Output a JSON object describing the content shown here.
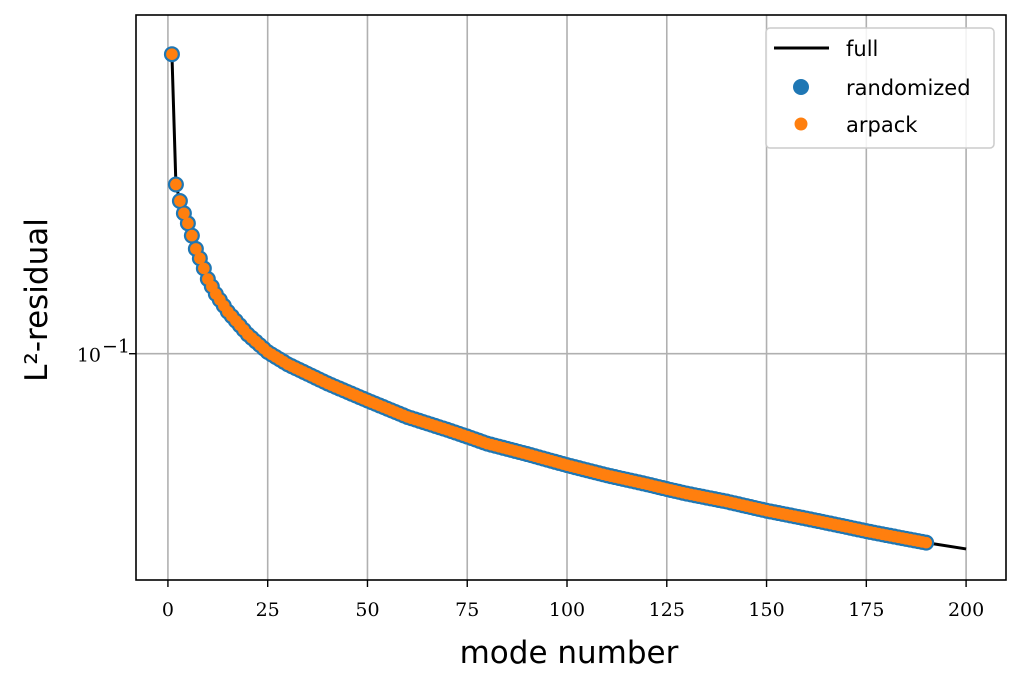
{
  "chart_data": {
    "type": "line",
    "xlabel": "mode number",
    "ylabel": "L²-residual",
    "y_scale": "log",
    "xlim": [
      -8,
      210
    ],
    "ylim": [
      0.0265,
      0.73
    ],
    "grid": true,
    "legend_position": "top-right",
    "x_ticks": [
      0,
      25,
      50,
      75,
      100,
      125,
      150,
      175,
      200
    ],
    "x_tick_labels": [
      "0",
      "25",
      "50",
      "75",
      "100",
      "125",
      "150",
      "175",
      "200"
    ],
    "y_ticks": [
      0.1
    ],
    "y_tick_labels": [
      "10",
      "−1"
    ],
    "legend": [
      "full",
      "randomized",
      "arpack"
    ],
    "colors": {
      "full": "#000000",
      "randomized": "#1f77b4",
      "arpack": "#ff7f0e"
    },
    "series": [
      {
        "name": "full",
        "style": "line",
        "points": [
          [
            1,
            0.58
          ],
          [
            2,
            0.27
          ],
          [
            3,
            0.245
          ],
          [
            4,
            0.228
          ],
          [
            5,
            0.215
          ],
          [
            6,
            0.2
          ],
          [
            7,
            0.185
          ],
          [
            8,
            0.175
          ],
          [
            9,
            0.165
          ],
          [
            10,
            0.155
          ],
          [
            12,
            0.142
          ],
          [
            15,
            0.128
          ],
          [
            20,
            0.112
          ],
          [
            25,
            0.101
          ],
          [
            30,
            0.094
          ],
          [
            40,
            0.084
          ],
          [
            50,
            0.076
          ],
          [
            60,
            0.069
          ],
          [
            70,
            0.064
          ],
          [
            75,
            0.0615
          ],
          [
            80,
            0.059
          ],
          [
            90,
            0.0555
          ],
          [
            100,
            0.052
          ],
          [
            110,
            0.049
          ],
          [
            120,
            0.0465
          ],
          [
            125,
            0.0452
          ],
          [
            130,
            0.044
          ],
          [
            140,
            0.042
          ],
          [
            150,
            0.0398
          ],
          [
            160,
            0.038
          ],
          [
            170,
            0.0362
          ],
          [
            175,
            0.0353
          ],
          [
            180,
            0.0345
          ],
          [
            190,
            0.033
          ],
          [
            200,
            0.0318
          ]
        ]
      },
      {
        "name": "randomized",
        "style": "markers",
        "points": [
          [
            1,
            0.58
          ],
          [
            2,
            0.27
          ],
          [
            3,
            0.245
          ],
          [
            4,
            0.228
          ],
          [
            5,
            0.215
          ],
          [
            6,
            0.2
          ],
          [
            7,
            0.185
          ],
          [
            8,
            0.175
          ],
          [
            9,
            0.165
          ],
          [
            10,
            0.155
          ],
          [
            12,
            0.142
          ],
          [
            15,
            0.128
          ],
          [
            20,
            0.112
          ],
          [
            25,
            0.101
          ],
          [
            30,
            0.094
          ],
          [
            40,
            0.084
          ],
          [
            50,
            0.076
          ],
          [
            60,
            0.069
          ],
          [
            70,
            0.064
          ],
          [
            75,
            0.0615
          ],
          [
            80,
            0.059
          ],
          [
            90,
            0.0555
          ],
          [
            100,
            0.052
          ],
          [
            110,
            0.049
          ],
          [
            120,
            0.0465
          ],
          [
            125,
            0.0452
          ],
          [
            130,
            0.044
          ],
          [
            140,
            0.042
          ],
          [
            150,
            0.0398
          ],
          [
            160,
            0.038
          ],
          [
            170,
            0.0362
          ],
          [
            175,
            0.0353
          ],
          [
            180,
            0.0345
          ],
          [
            190,
            0.033
          ]
        ]
      },
      {
        "name": "arpack",
        "style": "markers",
        "points": [
          [
            1,
            0.58
          ],
          [
            2,
            0.27
          ],
          [
            3,
            0.245
          ],
          [
            4,
            0.228
          ],
          [
            5,
            0.215
          ],
          [
            6,
            0.2
          ],
          [
            7,
            0.185
          ],
          [
            8,
            0.175
          ],
          [
            9,
            0.165
          ],
          [
            10,
            0.155
          ],
          [
            12,
            0.142
          ],
          [
            15,
            0.128
          ],
          [
            20,
            0.112
          ],
          [
            25,
            0.101
          ],
          [
            30,
            0.094
          ],
          [
            40,
            0.084
          ],
          [
            50,
            0.076
          ],
          [
            60,
            0.069
          ],
          [
            70,
            0.064
          ],
          [
            75,
            0.0615
          ],
          [
            80,
            0.059
          ],
          [
            90,
            0.0555
          ],
          [
            100,
            0.052
          ],
          [
            110,
            0.049
          ],
          [
            120,
            0.0465
          ],
          [
            125,
            0.0452
          ],
          [
            130,
            0.044
          ],
          [
            140,
            0.042
          ],
          [
            150,
            0.0398
          ],
          [
            160,
            0.038
          ],
          [
            170,
            0.0362
          ],
          [
            175,
            0.0353
          ],
          [
            180,
            0.0345
          ],
          [
            190,
            0.033
          ]
        ]
      }
    ]
  }
}
